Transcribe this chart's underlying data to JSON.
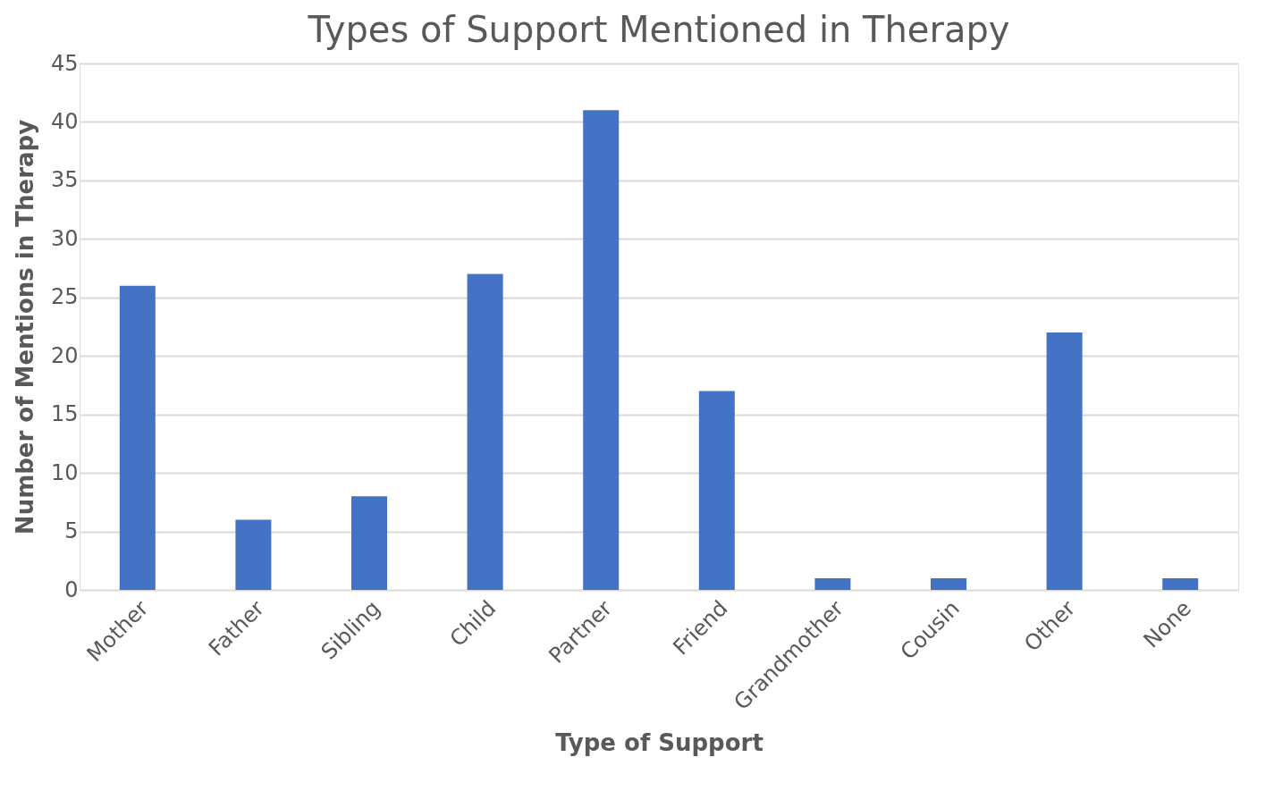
{
  "chart_data": {
    "type": "bar",
    "title": "Types of Support Mentioned in Therapy",
    "xlabel": "Type of Support",
    "ylabel": "Number of Mentions in Therapy",
    "categories": [
      "Mother",
      "Father",
      "Sibling",
      "Child",
      "Partner",
      "Friend",
      "Grandmother",
      "Cousin",
      "Other",
      "None"
    ],
    "values": [
      26,
      6,
      8,
      27,
      41,
      17,
      1,
      1,
      22,
      1
    ],
    "color": "#4472c4",
    "ylim": [
      0,
      45
    ],
    "yticks": [
      0,
      5,
      10,
      15,
      20,
      25,
      30,
      35,
      40,
      45
    ],
    "grid": "y"
  }
}
